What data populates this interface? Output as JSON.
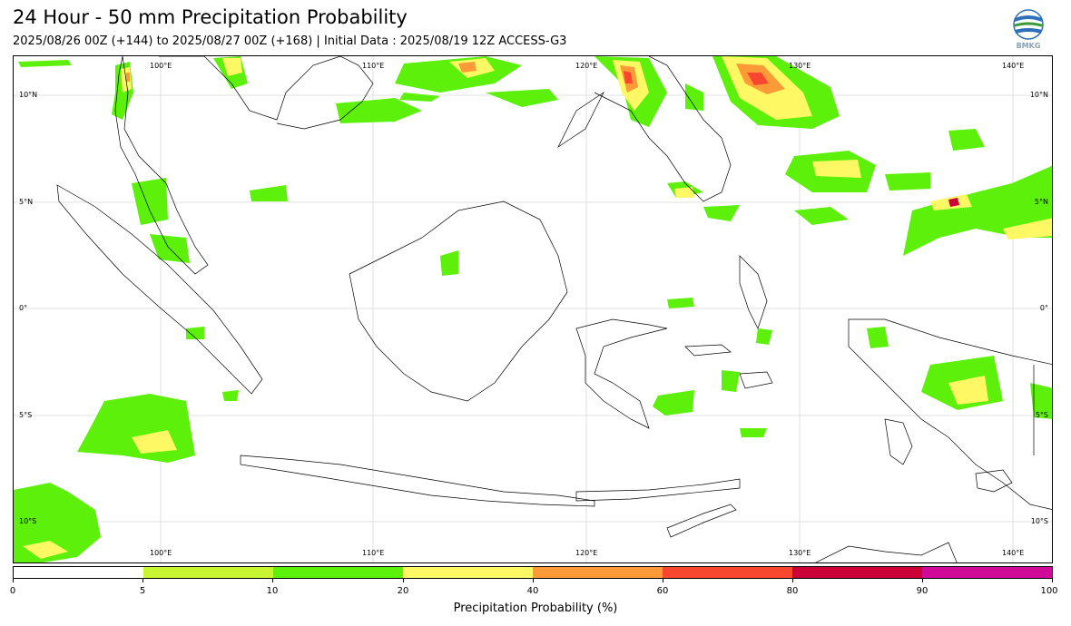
{
  "header": {
    "title": "24 Hour - 50 mm Precipitation Probability",
    "subtitle": "2025/08/26 00Z (+144) to 2025/08/27 00Z (+168) | Initial Data : 2025/08/19 12Z ACCESS-G3",
    "logo_text": "BMKG"
  },
  "map": {
    "lon_labels": [
      "100°E",
      "110°E",
      "120°E",
      "130°E",
      "140°E"
    ],
    "lat_labels": [
      "10°N",
      "5°N",
      "0°",
      "5°S",
      "10°S"
    ]
  },
  "colorbar": {
    "title": "Precipitation Probability (%)",
    "ticks": [
      "0",
      "5",
      "10",
      "20",
      "40",
      "60",
      "80",
      "90",
      "100"
    ],
    "colors": [
      "#ffffff",
      "#c8f532",
      "#5cf00a",
      "#fdf863",
      "#fd9a38",
      "#f9472f",
      "#cb0036",
      "#cf0a99"
    ]
  },
  "palette": {
    "land_outline": "#000000",
    "gridline": "#cfcfcf"
  }
}
